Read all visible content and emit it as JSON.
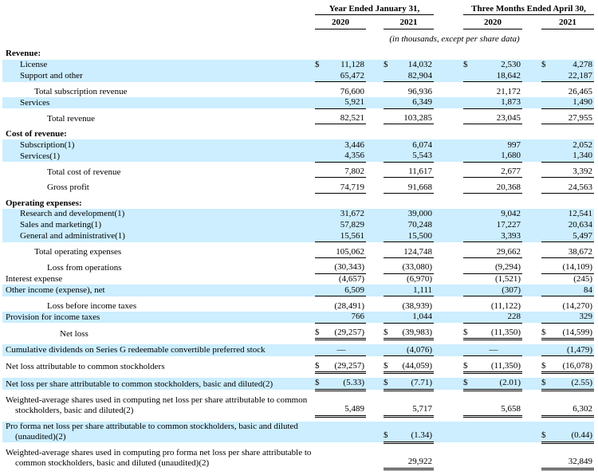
{
  "document": {
    "header": {
      "groups": [
        {
          "title": "Year Ended January 31,",
          "cols": [
            "2020",
            "2021"
          ]
        },
        {
          "title": "Three Months Ended April 30,",
          "cols": [
            "2020",
            "2021"
          ]
        }
      ],
      "note": "(in thousands, except per share data)"
    },
    "style": {
      "shade_color": "#cceeff",
      "text_color": "#000000"
    },
    "rows": [
      {
        "label": "Revenue:",
        "style": "section",
        "indent": 0,
        "shaded": false,
        "gap": false,
        "dollar": false,
        "rule": "none",
        "values": [
          "",
          "",
          "",
          ""
        ]
      },
      {
        "label": "License",
        "indent": 1,
        "shaded": true,
        "gap": false,
        "dollar": true,
        "rule": "none",
        "values": [
          "11,128",
          "14,032",
          "2,530",
          "4,278"
        ]
      },
      {
        "label": "Support and other",
        "indent": 1,
        "shaded": true,
        "gap": false,
        "dollar": false,
        "rule": "single",
        "values": [
          "65,472",
          "82,904",
          "18,642",
          "22,187"
        ]
      },
      {
        "label": "Total subscription revenue",
        "indent": 2,
        "shaded": false,
        "gap": true,
        "dollar": false,
        "rule": "none",
        "values": [
          "76,600",
          "96,936",
          "21,172",
          "26,465"
        ]
      },
      {
        "label": "Services",
        "indent": 1,
        "shaded": true,
        "gap": false,
        "dollar": false,
        "rule": "single",
        "values": [
          "5,921",
          "6,349",
          "1,873",
          "1,490"
        ]
      },
      {
        "label": "Total revenue",
        "indent": 3,
        "shaded": false,
        "gap": true,
        "dollar": false,
        "rule": "single",
        "values": [
          "82,521",
          "103,285",
          "23,045",
          "27,955"
        ]
      },
      {
        "label": "Cost of revenue:",
        "style": "section",
        "indent": 0,
        "shaded": false,
        "gap": true,
        "dollar": false,
        "rule": "none",
        "values": [
          "",
          "",
          "",
          ""
        ]
      },
      {
        "label": "Subscription(1)",
        "indent": 1,
        "shaded": true,
        "gap": false,
        "dollar": false,
        "rule": "none",
        "values": [
          "3,446",
          "6,074",
          "997",
          "2,052"
        ]
      },
      {
        "label": "Services(1)",
        "indent": 1,
        "shaded": true,
        "gap": false,
        "dollar": false,
        "rule": "single",
        "values": [
          "4,356",
          "5,543",
          "1,680",
          "1,340"
        ]
      },
      {
        "label": "Total cost of revenue",
        "indent": 3,
        "shaded": false,
        "gap": true,
        "dollar": false,
        "rule": "single",
        "values": [
          "7,802",
          "11,617",
          "2,677",
          "3,392"
        ]
      },
      {
        "label": "Gross profit",
        "indent": 3,
        "shaded": false,
        "gap": true,
        "dollar": false,
        "rule": "single",
        "values": [
          "74,719",
          "91,668",
          "20,368",
          "24,563"
        ]
      },
      {
        "label": "Operating expenses:",
        "style": "section",
        "indent": 0,
        "shaded": false,
        "gap": true,
        "dollar": false,
        "rule": "none",
        "values": [
          "",
          "",
          "",
          ""
        ]
      },
      {
        "label": "Research and development(1)",
        "indent": 1,
        "shaded": true,
        "gap": false,
        "dollar": false,
        "rule": "none",
        "values": [
          "31,672",
          "39,000",
          "9,042",
          "12,541"
        ]
      },
      {
        "label": "Sales and marketing(1)",
        "indent": 1,
        "shaded": true,
        "gap": false,
        "dollar": false,
        "rule": "none",
        "values": [
          "57,829",
          "70,248",
          "17,227",
          "20,634"
        ]
      },
      {
        "label": "General and administrative(1)",
        "indent": 1,
        "shaded": true,
        "gap": false,
        "dollar": false,
        "rule": "single",
        "values": [
          "15,561",
          "15,500",
          "3,393",
          "5,497"
        ]
      },
      {
        "label": "Total operating expenses",
        "indent": 2,
        "shaded": false,
        "gap": true,
        "dollar": false,
        "rule": "single",
        "values": [
          "105,062",
          "124,748",
          "29,662",
          "38,672"
        ]
      },
      {
        "label": "Loss from operations",
        "indent": 3,
        "shaded": false,
        "gap": true,
        "dollar": false,
        "rule": "single",
        "values": [
          "(30,343)",
          "(33,080)",
          "(9,294)",
          "(14,109)"
        ]
      },
      {
        "label": "Interest expense",
        "indent": 0,
        "shaded": false,
        "gap": false,
        "dollar": false,
        "rule": "none",
        "values": [
          "(4,657)",
          "(6,970)",
          "(1,521)",
          "(245)"
        ]
      },
      {
        "label": "Other income (expense), net",
        "indent": 0,
        "shaded": true,
        "gap": false,
        "dollar": false,
        "rule": "single",
        "values": [
          "6,509",
          "1,111",
          "(307)",
          "84"
        ]
      },
      {
        "label": "Loss before income taxes",
        "indent": 3,
        "shaded": false,
        "gap": true,
        "dollar": false,
        "rule": "none",
        "values": [
          "(28,491)",
          "(38,939)",
          "(11,122)",
          "(14,270)"
        ]
      },
      {
        "label": "Provision for income taxes",
        "indent": 0,
        "shaded": true,
        "gap": false,
        "dollar": false,
        "rule": "single",
        "values": [
          "766",
          "1,044",
          "228",
          "329"
        ]
      },
      {
        "label": "Net loss",
        "indent": 4,
        "shaded": false,
        "gap": true,
        "dollar": true,
        "rule": "double",
        "values": [
          "(29,257)",
          "(39,983)",
          "(11,350)",
          "(14,599)"
        ]
      },
      {
        "label": "Cumulative dividends on Series G redeemable convertible preferred stock",
        "indent": 0,
        "shaded": true,
        "gap": true,
        "dollar": false,
        "rule": "single",
        "values": [
          "—",
          "(4,076)",
          "—",
          "(1,479)"
        ]
      },
      {
        "label": "Net loss attributable to common stockholders",
        "indent": 0,
        "shaded": false,
        "gap": true,
        "dollar": true,
        "rule": "double",
        "values": [
          "(29,257)",
          "(44,059)",
          "(11,350)",
          "(16,078)"
        ]
      },
      {
        "label": "Net loss per share attributable to common stockholders, basic and diluted(2)",
        "indent": 0,
        "shaded": true,
        "gap": true,
        "dollar": true,
        "rule": "double",
        "values": [
          "(5.33)",
          "(7.71)",
          "(2.01)",
          "(2.55)"
        ]
      },
      {
        "label": "Weighted-average shares used in computing net loss per share attributable to common stockholders, basic and diluted(2)",
        "indent": 0,
        "shaded": false,
        "gap": true,
        "dollar": false,
        "rule": "double",
        "values": [
          "5,489",
          "5,717",
          "5,658",
          "6,302"
        ]
      },
      {
        "label": "Pro forma net loss per share attributable to common stockholders, basic and diluted (unaudited)(2)",
        "indent": 0,
        "shaded": true,
        "gap": true,
        "dollar": true,
        "rule": "double",
        "values": [
          "",
          "(1.34)",
          "",
          "(0.44)"
        ]
      },
      {
        "label": "Weighted-average shares used in computing pro forma net loss per share attributable to common stockholders, basic and diluted (unaudited)(2)",
        "indent": 0,
        "shaded": false,
        "gap": true,
        "dollar": false,
        "rule": "double",
        "values": [
          "",
          "29,922",
          "",
          "32,849"
        ]
      }
    ]
  }
}
